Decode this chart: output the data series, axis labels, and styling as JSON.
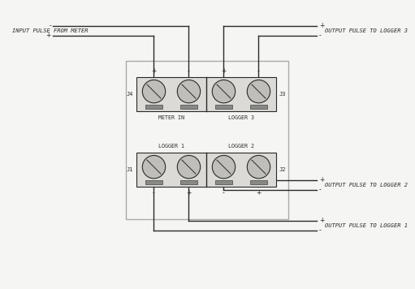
{
  "bg_color": "#f5f5f3",
  "line_color": "#2a2a2a",
  "term_bg": "#dcdad6",
  "term_fg": "#c0beba",
  "enc_edge": "#aaaaaa",
  "labels": {
    "input_pulse": "INPUT PULSE FROM METER",
    "output_logger3": "OUTPUT PULSE TO LOGGER 3",
    "output_logger2": "OUTPUT PULSE TO LOGGER 2",
    "output_logger1": "OUTPUT PULSE TO LOGGER 1",
    "meter_in": "METER IN",
    "logger3": "LOGGER 3",
    "logger1": "LOGGER 1",
    "logger2": "LOGGER 2",
    "J1": "J1",
    "J2": "J2",
    "J3": "J3",
    "J4": "J4"
  },
  "fs_main": 5.0,
  "fs_pm": 5.5,
  "fs_jlabel": 5.0,
  "fs_blabel": 4.8,
  "lw": 1.0
}
